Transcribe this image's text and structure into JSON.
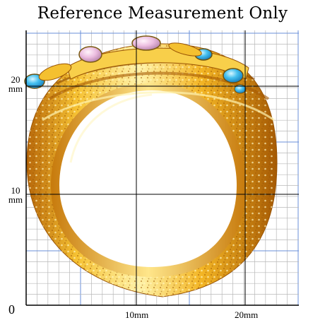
{
  "title": "Reference Measurement Only",
  "scale": {
    "origin_label": "0",
    "y_labels": [
      {
        "value": "20",
        "unit": "mm"
      },
      {
        "value": "10",
        "unit": "mm"
      }
    ],
    "x_labels": [
      "10mm",
      "20mm"
    ]
  },
  "colors": {
    "minor_grid": "#b8b8b8",
    "major_grid": "#000000",
    "blue_grid": "#6a8fd8",
    "gold_light": "#fff0a0",
    "gold_mid": "#f2b21c",
    "gold_dark": "#b86a05",
    "stone_blue": "#38b6e8",
    "stone_pink": "#e8b6dc"
  },
  "image": {
    "subject": "gold-ring-front-view",
    "stones": [
      "pink",
      "pink",
      "blue",
      "blue",
      "blue"
    ]
  }
}
